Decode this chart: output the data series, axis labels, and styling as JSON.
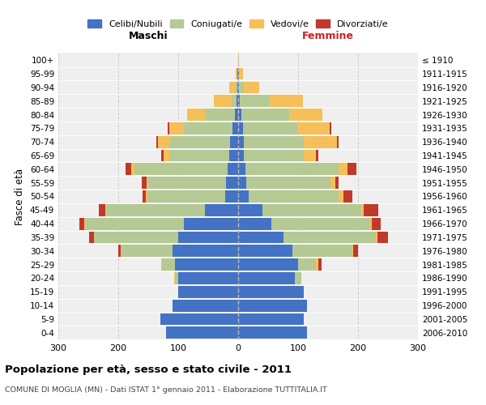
{
  "age_groups": [
    "0-4",
    "5-9",
    "10-14",
    "15-19",
    "20-24",
    "25-29",
    "30-34",
    "35-39",
    "40-44",
    "45-49",
    "50-54",
    "55-59",
    "60-64",
    "65-69",
    "70-74",
    "75-79",
    "80-84",
    "85-89",
    "90-94",
    "95-99",
    "100+"
  ],
  "birth_years": [
    "2006-2010",
    "2001-2005",
    "1996-2000",
    "1991-1995",
    "1986-1990",
    "1981-1985",
    "1976-1980",
    "1971-1975",
    "1966-1970",
    "1961-1965",
    "1956-1960",
    "1951-1955",
    "1946-1950",
    "1941-1945",
    "1936-1940",
    "1931-1935",
    "1926-1930",
    "1921-1925",
    "1916-1920",
    "1911-1915",
    "≤ 1910"
  ],
  "colors": {
    "celibi": "#4472C4",
    "coniugati": "#b5c994",
    "vedovi": "#f5c05a",
    "divorziati": "#c0392b"
  },
  "maschi": {
    "celibi": [
      120,
      130,
      110,
      100,
      100,
      105,
      110,
      100,
      90,
      55,
      22,
      20,
      18,
      15,
      14,
      10,
      5,
      3,
      2,
      1,
      0
    ],
    "coniugati": [
      0,
      0,
      0,
      0,
      5,
      22,
      85,
      140,
      165,
      165,
      130,
      130,
      155,
      100,
      100,
      80,
      50,
      8,
      3,
      0,
      0
    ],
    "vedovi": [
      0,
      0,
      0,
      0,
      2,
      2,
      1,
      1,
      2,
      2,
      2,
      3,
      5,
      10,
      20,
      25,
      30,
      30,
      10,
      3,
      0
    ],
    "divorziati": [
      0,
      0,
      0,
      0,
      0,
      0,
      4,
      8,
      8,
      10,
      6,
      8,
      10,
      4,
      3,
      2,
      0,
      0,
      0,
      0,
      0
    ]
  },
  "femmine": {
    "celibi": [
      115,
      110,
      115,
      110,
      95,
      100,
      90,
      75,
      55,
      40,
      18,
      14,
      12,
      10,
      10,
      8,
      5,
      3,
      2,
      1,
      0
    ],
    "coniugati": [
      0,
      0,
      0,
      0,
      10,
      30,
      100,
      155,
      165,
      165,
      150,
      140,
      155,
      100,
      100,
      90,
      80,
      50,
      8,
      2,
      0
    ],
    "vedovi": [
      0,
      0,
      0,
      0,
      0,
      4,
      2,
      2,
      3,
      4,
      8,
      8,
      15,
      20,
      55,
      55,
      55,
      55,
      25,
      5,
      1
    ],
    "divorziati": [
      0,
      0,
      0,
      0,
      0,
      5,
      8,
      18,
      15,
      25,
      14,
      6,
      15,
      4,
      3,
      3,
      0,
      0,
      0,
      0,
      0
    ]
  },
  "xlim": 300,
  "title": "Popolazione per età, sesso e stato civile - 2011",
  "subtitle": "COMUNE DI MOGLIA (MN) - Dati ISTAT 1° gennaio 2011 - Elaborazione TUTTITALIA.IT",
  "ylabel_left": "Fasce di età",
  "xlabel_left": "Maschi",
  "xlabel_right": "Femmine",
  "bg_color": "#efefef",
  "grid_color": "#cccccc"
}
